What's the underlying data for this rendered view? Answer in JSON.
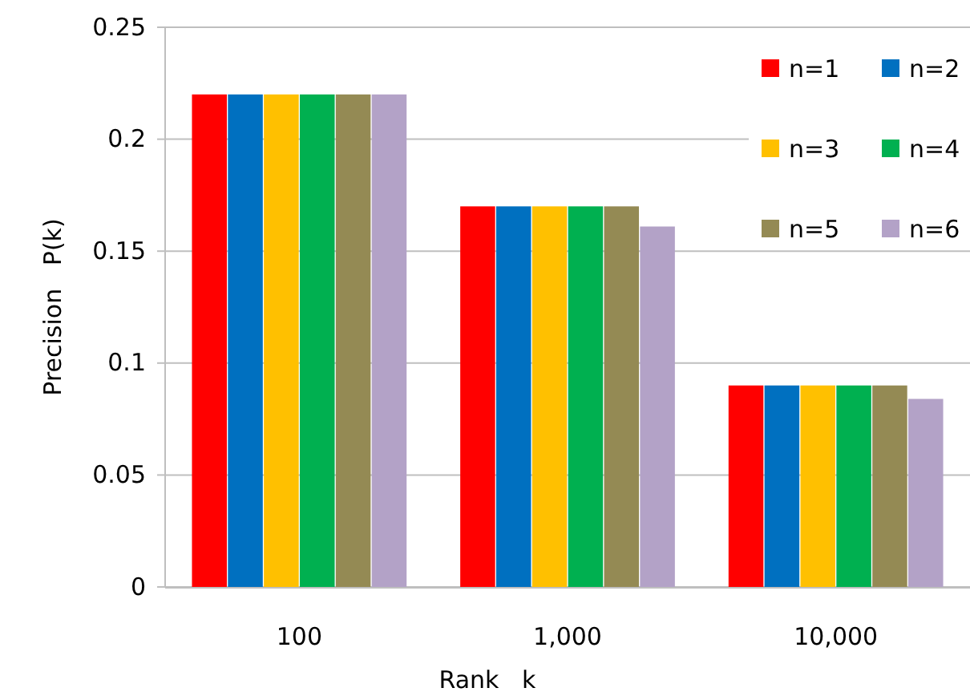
{
  "chart_data": {
    "type": "bar",
    "xlabel": "Rank   k",
    "ylabel": "Precision   P(k)",
    "categories": [
      "100",
      "1,000",
      "10,000"
    ],
    "series": [
      {
        "name": "n=1",
        "color": "#ff0000",
        "values": [
          0.22,
          0.17,
          0.09
        ]
      },
      {
        "name": "n=2",
        "color": "#0070c0",
        "values": [
          0.22,
          0.17,
          0.09
        ]
      },
      {
        "name": "n=3",
        "color": "#ffc000",
        "values": [
          0.22,
          0.17,
          0.09
        ]
      },
      {
        "name": "n=4",
        "color": "#00b050",
        "values": [
          0.22,
          0.17,
          0.09
        ]
      },
      {
        "name": "n=5",
        "color": "#948a54",
        "values": [
          0.22,
          0.17,
          0.09
        ]
      },
      {
        "name": "n=6",
        "color": "#b3a2c7",
        "values": [
          0.22,
          0.161,
          0.084
        ]
      }
    ],
    "ylim": [
      0,
      0.25
    ],
    "yticks": [
      0,
      0.05,
      0.1,
      0.15,
      0.2,
      0.25
    ],
    "grid": "y",
    "legend": "top right"
  }
}
